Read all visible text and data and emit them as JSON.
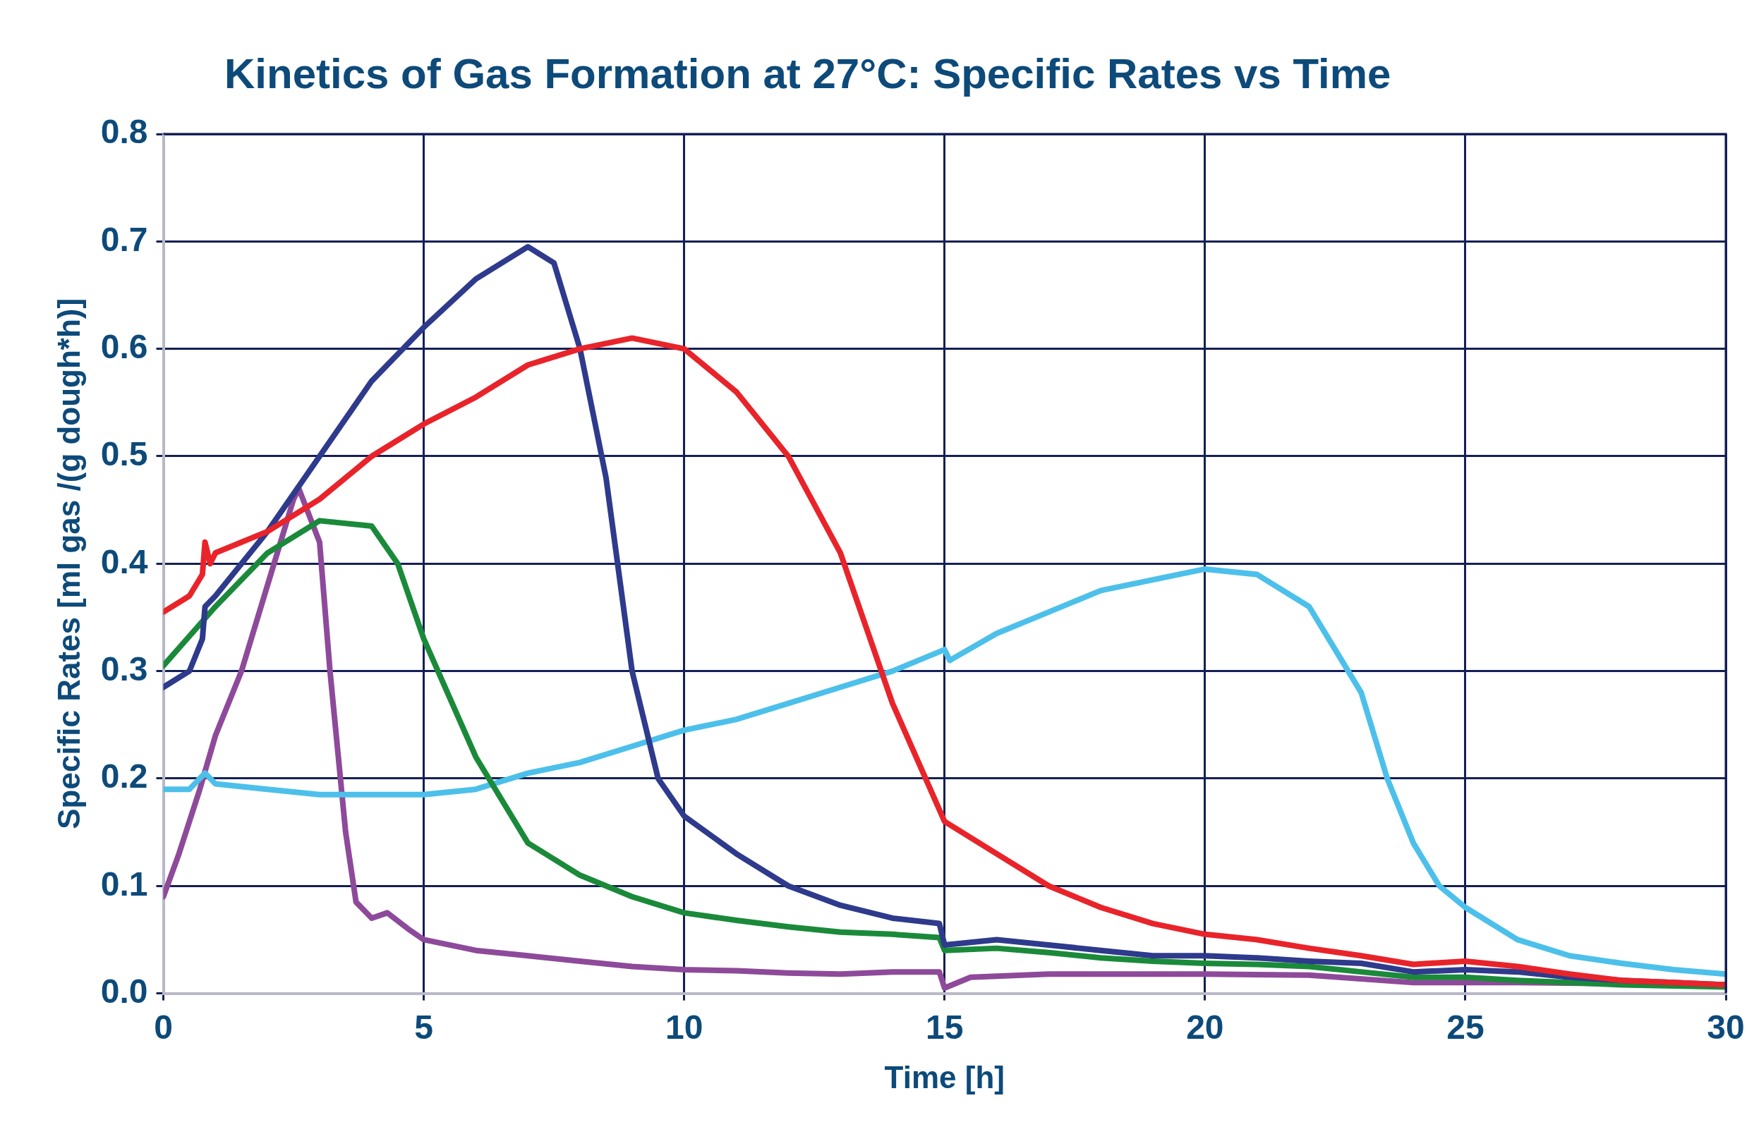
{
  "chart_data": {
    "type": "line",
    "title": "Kinetics of Gas Formation at 27°C: Specific Rates vs Time",
    "xlabel": "Time [h]",
    "ylabel": "Specific Rates [ml gas /(g dough*h)]",
    "xlim": [
      0,
      30
    ],
    "xticks": [
      0,
      5,
      10,
      15,
      20,
      25,
      30
    ],
    "ylim": [
      0,
      0.8
    ],
    "yticks": [
      {
        "value": 0,
        "label": "0.0"
      },
      0.1,
      0.2,
      0.3,
      0.4,
      0.5,
      0.6,
      0.7,
      0.8
    ],
    "grid": true,
    "marker": "none",
    "line_style": "solid",
    "series": [
      {
        "color": "#e8242a",
        "x": [
          0,
          0.5,
          0.75,
          0.8,
          0.9,
          1,
          2,
          3,
          4,
          5,
          6,
          7,
          8,
          9,
          10,
          11,
          12,
          13,
          14,
          15,
          16,
          17,
          18,
          19,
          20,
          21,
          22,
          23,
          24,
          25,
          26,
          27,
          28,
          29,
          30
        ],
        "values": [
          0.355,
          0.37,
          0.39,
          0.42,
          0.4,
          0.41,
          0.43,
          0.46,
          0.5,
          0.53,
          0.555,
          0.585,
          0.6,
          0.61,
          0.6,
          0.56,
          0.5,
          0.41,
          0.27,
          0.16,
          0.13,
          0.1,
          0.08,
          0.065,
          0.055,
          0.05,
          0.042,
          0.035,
          0.027,
          0.03,
          0.025,
          0.018,
          0.012,
          0.01,
          0.008
        ]
      },
      {
        "color": "#2e3a8c",
        "x": [
          0,
          0.5,
          0.75,
          0.8,
          1,
          2,
          3,
          4,
          5,
          6,
          7,
          7.5,
          8,
          8.5,
          9,
          9.5,
          10,
          11,
          12,
          13,
          14,
          14.9,
          15,
          16,
          17,
          18,
          19,
          20,
          21,
          22,
          23,
          24,
          25,
          26,
          27,
          28,
          29,
          30
        ],
        "values": [
          0.285,
          0.3,
          0.33,
          0.36,
          0.37,
          0.43,
          0.5,
          0.57,
          0.62,
          0.665,
          0.695,
          0.68,
          0.6,
          0.48,
          0.3,
          0.2,
          0.165,
          0.13,
          0.1,
          0.082,
          0.07,
          0.065,
          0.045,
          0.05,
          0.045,
          0.04,
          0.035,
          0.035,
          0.033,
          0.03,
          0.028,
          0.02,
          0.022,
          0.02,
          0.015,
          0.012,
          0.01,
          0.008
        ]
      },
      {
        "color": "#1a8a3a",
        "x": [
          0,
          1,
          2,
          3,
          4,
          4.5,
          5,
          6,
          7,
          8,
          9,
          10,
          11,
          12,
          13,
          14,
          14.9,
          15,
          16,
          17,
          18,
          19,
          20,
          21,
          22,
          23,
          24,
          25,
          26,
          27,
          28,
          30
        ],
        "values": [
          0.305,
          0.36,
          0.41,
          0.44,
          0.435,
          0.4,
          0.33,
          0.22,
          0.14,
          0.11,
          0.09,
          0.075,
          0.068,
          0.062,
          0.057,
          0.055,
          0.052,
          0.04,
          0.042,
          0.038,
          0.033,
          0.03,
          0.028,
          0.027,
          0.025,
          0.02,
          0.015,
          0.015,
          0.012,
          0.01,
          0.008,
          0.006
        ]
      },
      {
        "color": "#4cc0ea",
        "x": [
          0,
          0.5,
          0.8,
          1,
          2,
          3,
          4,
          5,
          6,
          7,
          8,
          9,
          10,
          11,
          12,
          13,
          14,
          15,
          15.1,
          16,
          17,
          18,
          19,
          20,
          21,
          22,
          22.5,
          23,
          23.5,
          24,
          24.5,
          25,
          26,
          27,
          28,
          29,
          30
        ],
        "values": [
          0.19,
          0.19,
          0.205,
          0.195,
          0.19,
          0.185,
          0.185,
          0.185,
          0.19,
          0.205,
          0.215,
          0.23,
          0.245,
          0.255,
          0.27,
          0.285,
          0.3,
          0.32,
          0.31,
          0.335,
          0.355,
          0.375,
          0.385,
          0.395,
          0.39,
          0.36,
          0.32,
          0.28,
          0.2,
          0.14,
          0.1,
          0.08,
          0.05,
          0.035,
          0.028,
          0.022,
          0.018
        ]
      },
      {
        "color": "#8e4a9a",
        "x": [
          0,
          0.3,
          0.7,
          1,
          1.5,
          2,
          2.5,
          2.6,
          3,
          3.2,
          3.5,
          3.7,
          4,
          4.3,
          4.7,
          5,
          6,
          7,
          8,
          9,
          10,
          11,
          12,
          13,
          14,
          14.9,
          15,
          15.5,
          17,
          20,
          22,
          24,
          26,
          30
        ],
        "values": [
          0.09,
          0.13,
          0.19,
          0.24,
          0.3,
          0.38,
          0.46,
          0.47,
          0.42,
          0.3,
          0.15,
          0.085,
          0.07,
          0.075,
          0.06,
          0.05,
          0.04,
          0.035,
          0.03,
          0.025,
          0.022,
          0.021,
          0.019,
          0.018,
          0.02,
          0.02,
          0.005,
          0.015,
          0.018,
          0.018,
          0.017,
          0.01,
          0.01,
          0.008
        ]
      }
    ]
  }
}
